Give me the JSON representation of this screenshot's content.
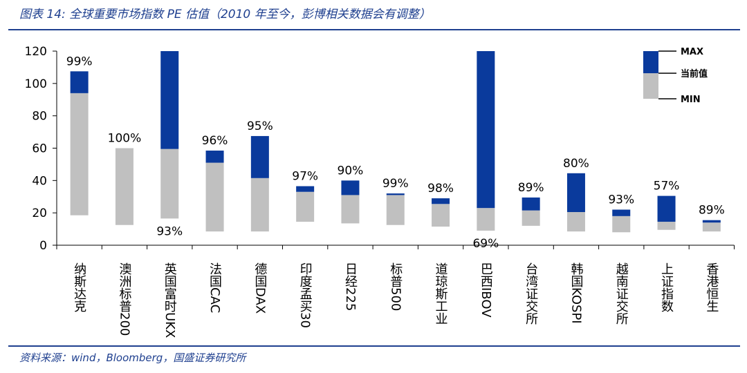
{
  "header": {
    "title": "图表 14: 全球重要市场指数 PE 估值（2010 年至今，彭博相关数据会有调整）"
  },
  "footer": {
    "source": "资料来源：wind，Bloomberg，国盛证券研究所"
  },
  "colors": {
    "range_low": "#c0c0c0",
    "range_high": "#0a3a9c",
    "accent": "#1e3f8f"
  },
  "chart_data": {
    "type": "bar",
    "subtype": "floating-range",
    "title": "",
    "ylim": [
      0,
      120
    ],
    "yticks": [
      0,
      20,
      40,
      60,
      80,
      100,
      120
    ],
    "grid": false,
    "legend": {
      "position": "top-right",
      "items": [
        "MAX",
        "当前值",
        "MIN"
      ]
    },
    "categories": [
      "纳斯达克",
      "澳洲标普200",
      "英国富时UKX",
      "法国CAC",
      "德国DAX",
      "印度孟买30",
      "日经225",
      "标普500",
      "道琼斯工业",
      "巴西IBOV",
      "台湾证交所",
      "韩国KOSPI",
      "越南证交所",
      "上证指数",
      "香港恒生"
    ],
    "min": [
      18.5,
      12.5,
      16.5,
      8.5,
      8.5,
      14.5,
      13.5,
      12.5,
      11.5,
      9.0,
      12.0,
      8.5,
      8.0,
      9.5,
      8.5
    ],
    "current": [
      94.0,
      60.0,
      59.5,
      51.0,
      41.5,
      33.0,
      31.0,
      31.0,
      25.5,
      23.0,
      21.5,
      20.5,
      18.0,
      14.5,
      14.0
    ],
    "max": [
      107.5,
      60.0,
      120.0,
      58.5,
      67.5,
      36.5,
      40.0,
      32.0,
      29.0,
      120.0,
      29.5,
      44.5,
      22.0,
      30.5,
      15.5
    ],
    "percentile_labels": [
      "99%",
      "100%",
      "93%",
      "96%",
      "95%",
      "97%",
      "90%",
      "99%",
      "98%",
      "69%",
      "89%",
      "80%",
      "93%",
      "57%",
      "89%"
    ]
  }
}
